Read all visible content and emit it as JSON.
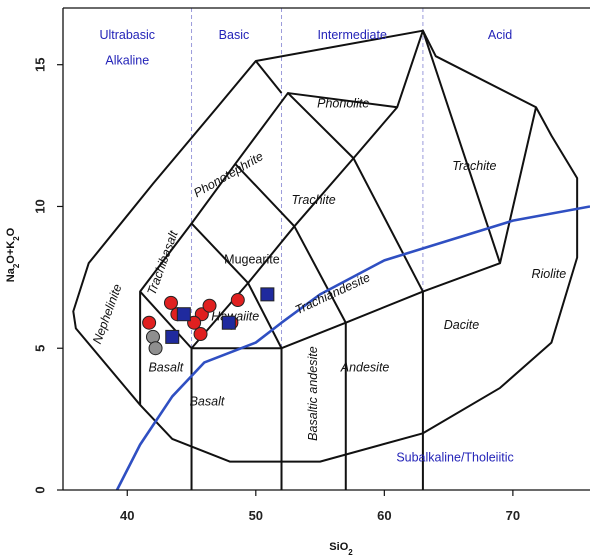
{
  "chart_data": {
    "type": "scatter",
    "xlabel": "SiO2",
    "ylabel": "Na2O+K2O",
    "xlim": [
      35,
      76
    ],
    "ylim": [
      0,
      17
    ],
    "x_ticks": [
      40,
      50,
      60,
      70
    ],
    "y_ticks": [
      0,
      5,
      10,
      15
    ],
    "grid": false,
    "legend": "none",
    "silica_divisions": [
      45,
      52,
      63
    ],
    "category_labels": [
      {
        "text": "Ultrabasic",
        "x": 40.0,
        "y": 15.9
      },
      {
        "text": "Alkaline",
        "x": 40.0,
        "y": 15.0
      },
      {
        "text": "Basic",
        "x": 48.3,
        "y": 15.9
      },
      {
        "text": "Intermediate",
        "x": 57.5,
        "y": 15.9
      },
      {
        "text": "Acid",
        "x": 69.0,
        "y": 15.9
      },
      {
        "text": "Subalkaline/Tholeiitic",
        "x": 65.5,
        "y": 1.0
      }
    ],
    "field_boundaries": [
      [
        [
          41,
          3
        ],
        [
          41,
          7
        ],
        [
          45,
          9.4
        ],
        [
          48.4,
          11.5
        ],
        [
          52.5,
          14
        ],
        [
          57.6,
          11.7
        ],
        [
          61,
          13.5
        ],
        [
          63,
          16.2
        ],
        [
          69,
          8
        ]
      ],
      [
        [
          45,
          0
        ],
        [
          45,
          5
        ],
        [
          49.4,
          7.3
        ],
        [
          53,
          9.3
        ],
        [
          57.6,
          11.7
        ]
      ],
      [
        [
          45,
          5
        ],
        [
          52,
          5
        ],
        [
          57,
          5.9
        ],
        [
          63,
          7
        ],
        [
          69,
          8
        ],
        [
          71.8,
          13.5
        ]
      ],
      [
        [
          52,
          0
        ],
        [
          52,
          5
        ],
        [
          49.4,
          7.3
        ],
        [
          45,
          9.4
        ]
      ],
      [
        [
          57,
          0
        ],
        [
          57,
          5.9
        ],
        [
          53,
          9.3
        ],
        [
          48.4,
          11.5
        ]
      ],
      [
        [
          63,
          0
        ],
        [
          63,
          7
        ],
        [
          57.6,
          11.7
        ]
      ],
      [
        [
          41,
          7
        ],
        [
          45,
          5
        ]
      ],
      [
        [
          52,
          14
        ],
        [
          50,
          15.13
        ]
      ],
      [
        [
          61,
          13.5
        ],
        [
          52.5,
          14
        ]
      ]
    ],
    "fields": [
      {
        "name": "Phonolite",
        "x": 56.8,
        "y": 13.6,
        "rotate": 0,
        "italic": true
      },
      {
        "name": "Phonotephrite",
        "x": 47.9,
        "y": 11.1,
        "rotate": -30,
        "italic": true
      },
      {
        "name": "Trachite",
        "x": 67.0,
        "y": 11.4,
        "rotate": 0,
        "italic": true
      },
      {
        "name": "Trachite",
        "x": 54.5,
        "y": 10.2,
        "rotate": 0,
        "italic": true
      },
      {
        "name": "Nephelinite",
        "x": 38.5,
        "y": 6.2,
        "rotate": -70,
        "italic": true
      },
      {
        "name": "Trachibasalt",
        "x": 42.8,
        "y": 8.0,
        "rotate": -70,
        "italic": true
      },
      {
        "name": "Mugearite",
        "x": 49.7,
        "y": 8.1,
        "rotate": 0,
        "italic": false
      },
      {
        "name": "Hawaiite",
        "x": 48.4,
        "y": 6.1,
        "rotate": 0,
        "italic": true
      },
      {
        "name": "Trachiandesite",
        "x": 56.0,
        "y": 6.9,
        "rotate": -25,
        "italic": true
      },
      {
        "name": "Riolite",
        "x": 72.8,
        "y": 7.6,
        "rotate": 0,
        "italic": true
      },
      {
        "name": "Dacite",
        "x": 66.0,
        "y": 5.8,
        "rotate": 0,
        "italic": true
      },
      {
        "name": "Andesite",
        "x": 58.5,
        "y": 4.3,
        "rotate": 0,
        "italic": true
      },
      {
        "name": "Basaltic andesite",
        "x": 54.5,
        "y": 3.4,
        "rotate": -90,
        "italic": true
      },
      {
        "name": "Basalt",
        "x": 43.0,
        "y": 4.3,
        "rotate": 0,
        "italic": true
      },
      {
        "name": "Basalt",
        "x": 46.2,
        "y": 3.1,
        "rotate": 0,
        "italic": true
      }
    ],
    "alkaline_divider": [
      [
        39.2,
        0
      ],
      [
        41,
        1.6
      ],
      [
        43.5,
        3.3
      ],
      [
        46,
        4.5
      ],
      [
        50,
        5.2
      ],
      [
        52,
        5.9
      ],
      [
        55,
        6.9
      ],
      [
        60,
        8.1
      ],
      [
        65,
        8.8
      ],
      [
        70,
        9.5
      ],
      [
        76,
        10
      ]
    ],
    "series": [
      {
        "marker": "circle",
        "color": "#e02020",
        "points": [
          [
            41.7,
            5.9
          ],
          [
            43.4,
            6.6
          ],
          [
            45.8,
            6.2
          ],
          [
            45.7,
            5.5
          ],
          [
            45.2,
            5.9
          ],
          [
            46.4,
            6.5
          ],
          [
            48.6,
            6.7
          ],
          [
            43.9,
            6.2
          ],
          [
            48.1,
            5.9
          ]
        ]
      },
      {
        "marker": "circle",
        "color": "#8f8f8f",
        "points": [
          [
            42.0,
            5.4
          ],
          [
            42.2,
            5.0
          ]
        ]
      },
      {
        "marker": "square",
        "color": "#1f2a9e",
        "points": [
          [
            44.4,
            6.2
          ],
          [
            47.9,
            5.9
          ],
          [
            50.9,
            6.9
          ],
          [
            43.5,
            5.4
          ]
        ]
      }
    ]
  },
  "colors": {
    "division_line": "#9b9bdb",
    "divider_line": "#2f4fc2",
    "category_text": "#2424b8",
    "boundary": "#111111"
  }
}
